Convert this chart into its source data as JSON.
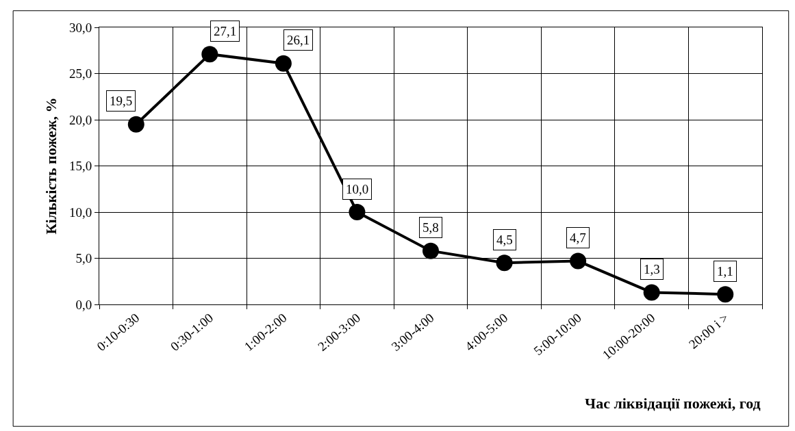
{
  "chart_data": {
    "type": "line",
    "xlabel": "Час ліквідації пожежі, год",
    "ylabel": "Кількість пожеж, %",
    "categories": [
      "0:10-0:30",
      "0:30-1:00",
      "1:00-2:00",
      "2:00-3:00",
      "3:00-4:00",
      "4:00-5:00",
      "5:00-10:00",
      "10:00-20:00",
      "20:00 і >"
    ],
    "series": [
      {
        "color": "#000000",
        "values": [
          19.5,
          27.1,
          26.1,
          10.0,
          5.8,
          4.5,
          4.7,
          1.3,
          1.1
        ],
        "value_labels": [
          "19,5",
          "27,1",
          "26,1",
          "10,0",
          "5,8",
          "4,5",
          "4,7",
          "1,3",
          "1,1"
        ]
      }
    ],
    "ylim": [
      0,
      30
    ],
    "yticks": [
      {
        "value": 0,
        "label": "0,0"
      },
      {
        "value": 5,
        "label": "5,0"
      },
      {
        "value": 10,
        "label": "10,0"
      },
      {
        "value": 15,
        "label": "15,0"
      },
      {
        "value": 20,
        "label": "20,0"
      },
      {
        "value": 25,
        "label": "25,0"
      },
      {
        "value": 30,
        "label": "30,0"
      }
    ],
    "grid": true,
    "legend": false,
    "marker": "circle",
    "line_style": "solid"
  }
}
